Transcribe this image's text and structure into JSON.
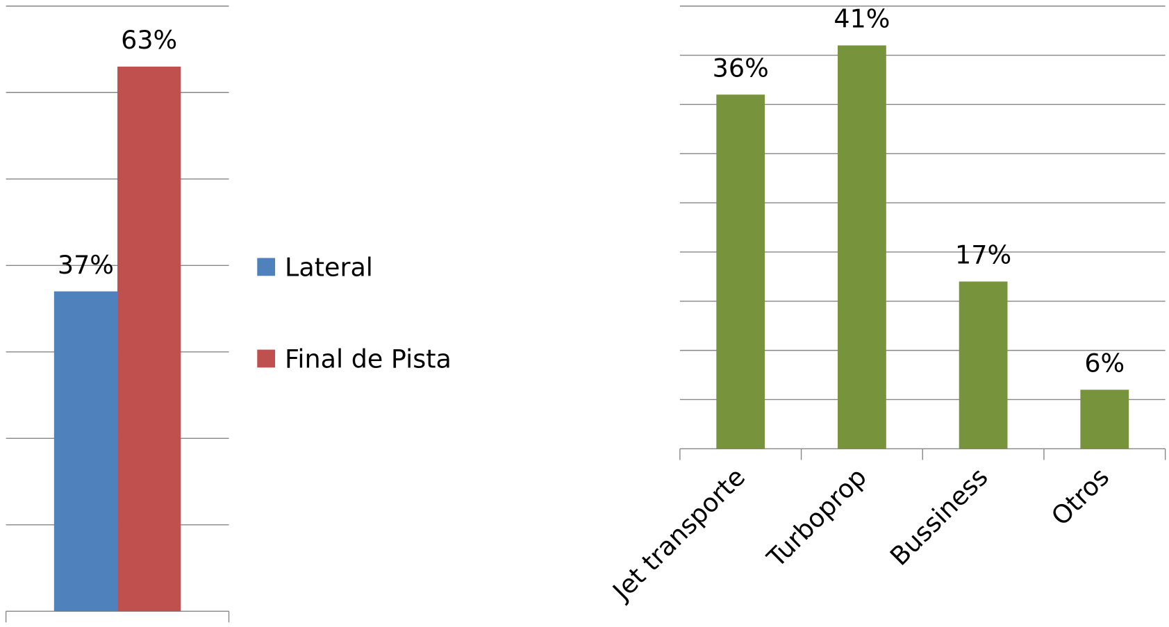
{
  "chart_data": [
    {
      "type": "bar",
      "categories": [
        null
      ],
      "series": [
        {
          "name": "Lateral",
          "color": "#4f81bd",
          "values": [
            37
          ],
          "value_labels": [
            "37%"
          ]
        },
        {
          "name": "Final de Pista",
          "color": "#c0504d",
          "values": [
            63
          ],
          "value_labels": [
            "63%"
          ]
        }
      ],
      "ylim": [
        0,
        70
      ],
      "yticks": [
        0,
        10,
        20,
        30,
        40,
        50,
        60,
        70
      ],
      "grid": true,
      "tick_labels": false,
      "legend": "right"
    },
    {
      "type": "bar",
      "categories": [
        "Jet transporte",
        "Turboprop",
        "Bussiness",
        "Otros"
      ],
      "values": [
        36,
        41,
        17,
        6
      ],
      "value_labels": [
        "36%",
        "41%",
        "17%",
        "6%"
      ],
      "color": "#77933c",
      "ylim": [
        0,
        45
      ],
      "yticks": [
        0,
        5,
        10,
        15,
        20,
        25,
        30,
        35,
        40,
        45
      ],
      "grid": true,
      "tick_labels": false
    }
  ]
}
